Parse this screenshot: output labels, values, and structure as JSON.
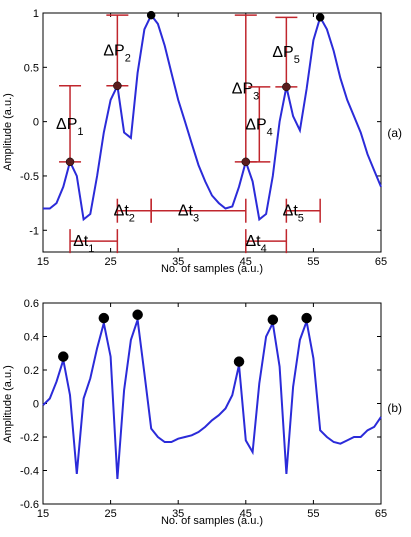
{
  "colors": {
    "line": "#2b2bd9",
    "annotation": "#c0262d",
    "peak_marker": "#000000",
    "dark_marker": "#5a1d1d",
    "axis": "#000000"
  },
  "chart_data": [
    {
      "type": "line",
      "panel_label": "(a)",
      "xlabel": "No. of samples (a.u.)",
      "ylabel": "Amplitude (a.u.)",
      "xlim": [
        15,
        65
      ],
      "ylim": [
        -1.2,
        1
      ],
      "xticks": [
        15,
        25,
        35,
        45,
        55,
        65
      ],
      "xtick_labels": [
        "15",
        "25",
        "35",
        "45",
        "55",
        "65"
      ],
      "yticks": [
        -1,
        -0.5,
        0,
        0.5,
        1
      ],
      "ytick_labels": [
        "-1",
        "-0.5",
        "0",
        "0.5",
        "1"
      ],
      "series": [
        {
          "x": [
            15,
            16,
            17,
            18,
            19,
            20,
            21,
            22,
            23,
            24,
            25,
            26,
            27,
            28,
            29,
            30,
            31,
            32,
            33,
            34,
            35,
            36,
            37,
            38,
            39,
            40,
            41,
            42,
            43,
            44,
            45,
            46,
            47,
            48,
            49,
            50,
            51,
            52,
            53,
            54,
            55,
            56,
            57,
            58,
            59,
            60,
            61,
            62,
            63,
            64,
            65
          ],
          "y": [
            -0.8,
            -0.8,
            -0.75,
            -0.6,
            -0.37,
            -0.5,
            -0.9,
            -0.85,
            -0.5,
            -0.1,
            0.2,
            0.33,
            -0.1,
            -0.15,
            0.45,
            0.85,
            0.98,
            0.9,
            0.7,
            0.45,
            0.2,
            0.0,
            -0.2,
            -0.4,
            -0.55,
            -0.68,
            -0.75,
            -0.8,
            -0.78,
            -0.6,
            -0.37,
            -0.55,
            -0.9,
            -0.85,
            -0.5,
            0.0,
            0.32,
            0.05,
            -0.08,
            0.3,
            0.75,
            0.96,
            0.85,
            0.65,
            0.4,
            0.2,
            0.05,
            -0.1,
            -0.3,
            -0.45,
            -0.6
          ]
        }
      ],
      "peak_markers": [
        {
          "x": 19,
          "y": -0.37
        },
        {
          "x": 26,
          "y": 0.33
        },
        {
          "x": 31,
          "y": 0.98
        },
        {
          "x": 45,
          "y": -0.37
        },
        {
          "x": 51,
          "y": 0.32
        },
        {
          "x": 56,
          "y": 0.96
        }
      ],
      "amplitude_annotations": [
        {
          "label": "ΔP",
          "sub": "1",
          "x": 19,
          "y_from": -0.37,
          "y_to": 0.33
        },
        {
          "label": "ΔP",
          "sub": "2",
          "x": 26,
          "y_from": 0.33,
          "y_to": 0.98
        },
        {
          "label": "ΔP",
          "sub": "3",
          "x": 45,
          "y_from": -0.37,
          "y_to": 0.98
        },
        {
          "label": "ΔP",
          "sub": "4",
          "x": 47,
          "y_from": -0.37,
          "y_to": 0.32
        },
        {
          "label": "ΔP",
          "sub": "5",
          "x": 51,
          "y_from": 0.32,
          "y_to": 0.96
        }
      ],
      "time_annotations": [
        {
          "label": "Δt",
          "sub": "1",
          "x_from": 19,
          "x_to": 26,
          "y": -1.1
        },
        {
          "label": "Δt",
          "sub": "2",
          "x_from": 26,
          "x_to": 31,
          "y": -0.82
        },
        {
          "label": "Δt",
          "sub": "3",
          "x_from": 31,
          "x_to": 45,
          "y": -0.82
        },
        {
          "label": "Δt",
          "sub": "4",
          "x_from": 45,
          "x_to": 51,
          "y": -1.1
        },
        {
          "label": "Δt",
          "sub": "5",
          "x_from": 51,
          "x_to": 56,
          "y": -0.82
        }
      ]
    },
    {
      "type": "line",
      "panel_label": "(b)",
      "xlabel": "No. of samples (a.u.)",
      "ylabel": "Amplitude (a.u.)",
      "xlim": [
        15,
        65
      ],
      "ylim": [
        -0.6,
        0.6
      ],
      "xticks": [
        15,
        25,
        35,
        45,
        55,
        65
      ],
      "xtick_labels": [
        "15",
        "25",
        "35",
        "45",
        "55",
        "65"
      ],
      "yticks": [
        -0.6,
        -0.4,
        -0.2,
        0,
        0.2,
        0.4,
        0.6
      ],
      "ytick_labels": [
        "-0.6",
        "-0.4",
        "-0.2",
        "0",
        "0.2",
        "0.4",
        "0.6"
      ],
      "series": [
        {
          "x": [
            15,
            16,
            17,
            18,
            19,
            20,
            21,
            22,
            23,
            24,
            25,
            26,
            27,
            28,
            29,
            30,
            31,
            32,
            33,
            34,
            35,
            36,
            37,
            38,
            39,
            40,
            41,
            42,
            43,
            44,
            45,
            46,
            47,
            48,
            49,
            50,
            51,
            52,
            53,
            54,
            55,
            56,
            57,
            58,
            59,
            60,
            61,
            62,
            63,
            64,
            65
          ],
          "y": [
            -0.01,
            0.03,
            0.13,
            0.26,
            0.05,
            -0.42,
            0.03,
            0.15,
            0.33,
            0.48,
            0.28,
            -0.45,
            0.08,
            0.38,
            0.5,
            0.18,
            -0.15,
            -0.2,
            -0.23,
            -0.23,
            -0.21,
            -0.2,
            -0.19,
            -0.17,
            -0.14,
            -0.1,
            -0.07,
            -0.03,
            0.05,
            0.23,
            -0.22,
            -0.29,
            0.12,
            0.4,
            0.48,
            0.22,
            -0.42,
            0.1,
            0.38,
            0.49,
            0.27,
            -0.16,
            -0.2,
            -0.23,
            -0.24,
            -0.22,
            -0.2,
            -0.2,
            -0.16,
            -0.14,
            -0.08
          ]
        }
      ],
      "peak_markers": [
        {
          "x": 18,
          "y": 0.28
        },
        {
          "x": 24,
          "y": 0.51
        },
        {
          "x": 29,
          "y": 0.53
        },
        {
          "x": 44,
          "y": 0.25
        },
        {
          "x": 49,
          "y": 0.5
        },
        {
          "x": 54,
          "y": 0.51
        }
      ]
    }
  ]
}
